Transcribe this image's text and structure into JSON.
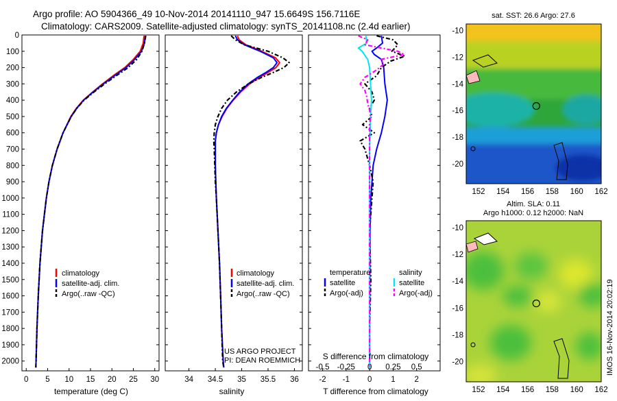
{
  "header": {
    "title_line1": "Argo profile: AO 5904366_49 10-Nov-2014 20141110_947 15.6649S 156.7116E",
    "title_line2": "Climatology: CARS2009. Satellite-adjusted climatology: synTS_20141108.nc (2.4d earlier)"
  },
  "colors": {
    "climatology": "#ff0000",
    "satellite": "#0000ff",
    "argo": "#000000",
    "sal_satellite": "#00e5ee",
    "sal_argo": "#ff00ff"
  },
  "chart_data": [
    {
      "type": "line",
      "id": "temperature",
      "xlabel": "temperature (deg C)",
      "xlim": [
        -1,
        31
      ],
      "xticks": [
        0,
        5,
        10,
        15,
        20,
        25,
        30
      ],
      "ylim": [
        2060,
        0
      ],
      "yticks": [
        0,
        100,
        200,
        300,
        400,
        500,
        600,
        700,
        800,
        900,
        1000,
        1100,
        1200,
        1300,
        1400,
        1500,
        1600,
        1700,
        1800,
        1900,
        2000
      ],
      "depth": [
        5,
        50,
        100,
        150,
        200,
        250,
        300,
        350,
        400,
        450,
        500,
        600,
        700,
        800,
        900,
        1000,
        1200,
        1400,
        1600,
        1800,
        2000,
        2040
      ],
      "series": [
        {
          "name": "climatology",
          "style": "solid",
          "values": [
            27.5,
            27.3,
            26.6,
            25.0,
            23.0,
            20.3,
            17.8,
            15.5,
            13.3,
            11.7,
            10.4,
            8.6,
            7.2,
            6.1,
            5.3,
            4.7,
            3.8,
            3.2,
            2.8,
            2.5,
            2.3,
            2.25
          ]
        },
        {
          "name": "satellite-adj. clim.",
          "style": "solid",
          "values": [
            27.8,
            27.6,
            26.9,
            25.3,
            23.3,
            20.6,
            18.0,
            15.6,
            13.4,
            11.8,
            10.5,
            8.6,
            7.2,
            6.1,
            5.3,
            4.7,
            3.8,
            3.2,
            2.8,
            2.5,
            2.3,
            2.25
          ]
        },
        {
          "name": "Argo(..raw -QC)",
          "style": "dashed",
          "values": [
            27.9,
            27.6,
            27.0,
            25.8,
            23.8,
            21.0,
            18.3,
            15.8,
            13.5,
            11.8,
            10.5,
            8.6,
            7.2,
            6.1,
            5.3,
            4.7,
            3.8,
            3.2,
            2.8,
            2.5,
            2.3,
            2.25
          ]
        }
      ],
      "legend": [
        "climatology",
        "satellite-adj. clim.",
        "Argo(..raw -QC)"
      ]
    },
    {
      "type": "line",
      "id": "salinity",
      "xlabel": "salinity",
      "xlim": [
        33.55,
        36.15
      ],
      "xticks": [
        34,
        34.5,
        35,
        35.5,
        36
      ],
      "xticklabels": [
        "34",
        "34.5",
        "35",
        "35.5",
        "36"
      ],
      "ylim": [
        2060,
        0
      ],
      "depth": [
        5,
        30,
        60,
        100,
        140,
        170,
        200,
        230,
        260,
        300,
        350,
        400,
        450,
        500,
        550,
        600,
        650,
        700,
        800,
        900,
        1000,
        1200,
        1400,
        1600,
        1800,
        2000,
        2040
      ],
      "series": [
        {
          "name": "climatology",
          "style": "solid",
          "values": [
            34.92,
            34.95,
            35.08,
            35.38,
            35.64,
            35.72,
            35.65,
            35.5,
            35.34,
            35.15,
            34.98,
            34.84,
            34.72,
            34.63,
            34.56,
            34.52,
            34.5,
            34.5,
            34.5,
            34.51,
            34.52,
            34.55,
            34.58,
            34.6,
            34.62,
            34.65,
            34.66
          ]
        },
        {
          "name": "satellite-adj. clim.",
          "style": "solid",
          "values": [
            34.88,
            34.92,
            35.05,
            35.35,
            35.6,
            35.67,
            35.6,
            35.46,
            35.3,
            35.12,
            34.96,
            34.83,
            34.71,
            34.62,
            34.56,
            34.52,
            34.5,
            34.5,
            34.5,
            34.51,
            34.52,
            34.55,
            34.58,
            34.6,
            34.62,
            34.65,
            34.66
          ]
        },
        {
          "name": "Argo(..raw -QC)",
          "style": "dashed",
          "values": [
            34.8,
            34.88,
            35.05,
            35.5,
            35.78,
            35.9,
            35.8,
            35.6,
            35.38,
            35.13,
            34.9,
            34.73,
            34.62,
            34.55,
            34.5,
            34.48,
            34.47,
            34.48,
            34.49,
            34.5,
            34.52,
            34.55,
            34.58,
            34.6,
            34.62,
            34.64,
            34.66
          ]
        }
      ],
      "legend": [
        "climatology",
        "satellite-adj. clim.",
        "Argo(..raw -QC)"
      ],
      "credit_line1": "US ARGO PROJECT",
      "credit_line2": "PI: DEAN ROEMMICH"
    },
    {
      "type": "line",
      "id": "difference",
      "xlabel": "T difference from climatology",
      "xlabel_top": "S difference from climatology",
      "xlim": [
        -2.6,
        3.0
      ],
      "xticks": [
        -2,
        -1,
        0,
        1,
        2
      ],
      "top_ticks": [
        -0.5,
        -0.25,
        0,
        0.25,
        0.5
      ],
      "top_ticklabels": [
        "-0.5",
        "-0.25",
        "0",
        "0.25",
        "0.5"
      ],
      "ylim": [
        2060,
        0
      ],
      "series": [
        {
          "name": "T satellite",
          "style": "solid",
          "color_key": "satellite",
          "depth": [
            5,
            50,
            80,
            100,
            120,
            150,
            200,
            300,
            400,
            500,
            600,
            700,
            800,
            1000,
            1200,
            1500,
            1800,
            2040
          ],
          "values": [
            0.5,
            0.55,
            0.3,
            0.1,
            0.2,
            0.5,
            0.6,
            0.65,
            0.75,
            0.65,
            0.5,
            0.3,
            0.15,
            0.05,
            0.02,
            0.01,
            0.0,
            0.0
          ]
        },
        {
          "name": "T Argo(-adj)",
          "style": "dashed",
          "color_key": "argo",
          "depth": [
            5,
            30,
            60,
            100,
            130,
            160,
            200,
            250,
            300,
            350,
            400,
            450,
            500,
            550,
            600,
            650,
            700,
            800,
            900,
            1000,
            1200,
            1500,
            1800,
            2040
          ],
          "values": [
            0.3,
            1.0,
            1.2,
            0.95,
            1.5,
            0.9,
            0.5,
            0.3,
            -0.2,
            0.1,
            0.2,
            0.0,
            0.1,
            -0.3,
            0.2,
            -0.4,
            -0.2,
            0.0,
            0.15,
            0.1,
            0.0,
            0.05,
            0.0,
            0.0
          ]
        },
        {
          "name": "S satellite",
          "style": "solid",
          "color_key": "sal_satellite",
          "depth": [
            5,
            50,
            80,
            100,
            150,
            200,
            300,
            400,
            500,
            600,
            700,
            800,
            1000,
            1500,
            2040
          ],
          "values": [
            -0.04,
            -0.03,
            -0.12,
            -0.08,
            -0.02,
            0.0,
            0.01,
            0.02,
            0.01,
            0.005,
            0.0,
            0.0,
            0.0,
            0.0,
            0.0
          ]
        },
        {
          "name": "S Argo(-adj)",
          "style": "dashed",
          "color_key": "sal_argo",
          "depth": [
            5,
            30,
            60,
            100,
            120,
            150,
            180,
            220,
            260,
            300,
            340,
            380,
            420,
            460,
            500,
            550,
            600,
            700,
            800,
            1000,
            1500,
            2040
          ],
          "values": [
            -0.12,
            -0.02,
            -0.05,
            0.3,
            0.37,
            0.12,
            0.15,
            0.06,
            -0.05,
            -0.1,
            -0.05,
            -0.03,
            -0.02,
            0.0,
            0.01,
            0.0,
            0.0,
            0.0,
            0.0,
            0.0,
            0.0,
            0.0
          ]
        }
      ],
      "legend_head_t": "temperature",
      "legend_head_s": "salinity",
      "legend": [
        "satellite",
        "Argo(-adj)",
        "satellite",
        "Argo(-adj)"
      ]
    },
    {
      "type": "heatmap",
      "id": "sst_map",
      "title": "sat. SST: 26.6 Argo: 27.6",
      "xlim": [
        151,
        162
      ],
      "ylim": [
        -21.5,
        -9.5
      ],
      "xticks": [
        152,
        154,
        156,
        158,
        160,
        162
      ],
      "yticks": [
        -10,
        -12,
        -14,
        -16,
        -18,
        -20
      ],
      "argo_location": [
        156.71,
        -15.66
      ]
    },
    {
      "type": "heatmap",
      "id": "sla_map",
      "title_line1": "Altim. SLA: 0.11",
      "title_line2": "Argo h1000: 0.12 h2000: NaN",
      "xlim": [
        151,
        162
      ],
      "ylim": [
        -21.5,
        -9.5
      ],
      "xticks": [
        152,
        154,
        156,
        158,
        160,
        162
      ],
      "yticks": [
        -10,
        -12,
        -14,
        -16,
        -18,
        -20
      ],
      "argo_location": [
        156.71,
        -15.66
      ]
    }
  ],
  "footer": {
    "stamp": "IMOS 16-Nov-2014 20:02:19"
  }
}
